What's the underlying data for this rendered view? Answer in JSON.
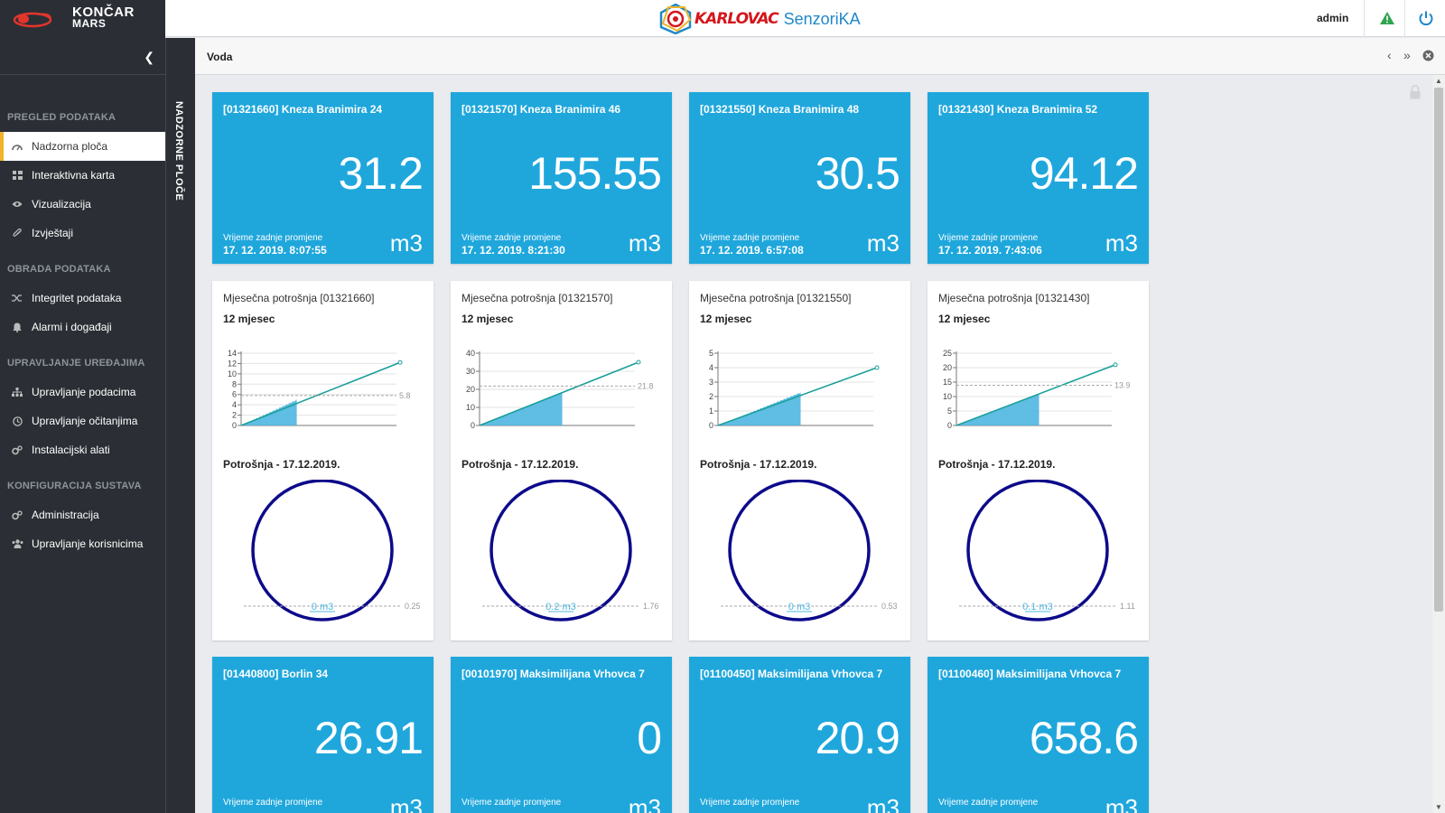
{
  "header": {
    "brand_line1": "KONČAR",
    "brand_line2": "MARS",
    "logo_karlovac": "KARLOVAC",
    "logo_senzorika": "SenzoriKA",
    "user": "admin"
  },
  "colors": {
    "sidebar": "#2b2f35",
    "tile": "#1fa7dc",
    "accent": "#f0b429",
    "gauge": "#0d0a8a",
    "line": "#1a9f9a"
  },
  "sidebar": {
    "sections": [
      {
        "title": "PREGLED PODATAKA",
        "items": [
          {
            "label": "Nadzorna ploča",
            "icon": "dashboard-icon"
          },
          {
            "label": "Interaktivna karta",
            "icon": "grid-icon"
          },
          {
            "label": "Vizualizacija",
            "icon": "eye-icon"
          },
          {
            "label": "Izvještaji",
            "icon": "paperclip-icon"
          }
        ]
      },
      {
        "title": "OBRADA PODATAKA",
        "items": [
          {
            "label": "Integritet podataka",
            "icon": "shuffle-icon"
          },
          {
            "label": "Alarmi i događaji",
            "icon": "bell-icon"
          }
        ]
      },
      {
        "title": "UPRAVLJANJE UREĐAJIMA",
        "items": [
          {
            "label": "Upravljanje podacima",
            "icon": "sitemap-icon"
          },
          {
            "label": "Upravljanje očitanjima",
            "icon": "clock-icon"
          },
          {
            "label": "Instalacijski alati",
            "icon": "gears-icon"
          }
        ]
      },
      {
        "title": "KONFIGURACIJA SUSTAVA",
        "items": [
          {
            "label": "Administracija",
            "icon": "gears-icon"
          },
          {
            "label": "Upravljanje korisnicima",
            "icon": "users-icon"
          }
        ]
      }
    ]
  },
  "vertical_tab": "NADZORNE PLOČE",
  "page": {
    "title": "Voda"
  },
  "tiles": [
    {
      "title": "[01321660] Kneza Branimira 24",
      "value": "31.2",
      "time_label": "Vrijeme zadnje promjene",
      "time": "17. 12. 2019. 8:07:55",
      "unit": "m3"
    },
    {
      "title": "[01321570] Kneza Branimira 46",
      "value": "155.55",
      "time_label": "Vrijeme zadnje promjene",
      "time": "17. 12. 2019. 8:21:30",
      "unit": "m3"
    },
    {
      "title": "[01321550] Kneza Branimira 48",
      "value": "30.5",
      "time_label": "Vrijeme zadnje promjene",
      "time": "17. 12. 2019. 6:57:08",
      "unit": "m3"
    },
    {
      "title": "[01321430] Kneza Branimira 52",
      "value": "94.12",
      "time_label": "Vrijeme zadnje promjene",
      "time": "17. 12. 2019. 7:43:06",
      "unit": "m3"
    },
    {
      "title": "[01440800] Borlin 34",
      "value": "26.91",
      "time_label": "Vrijeme zadnje promjene",
      "time": "",
      "unit": "m3"
    },
    {
      "title": "[00101970] Maksimilijana Vrhovca 7",
      "value": "0",
      "time_label": "Vrijeme zadnje promjene",
      "time": "",
      "unit": "m3"
    },
    {
      "title": "[01100450] Maksimilijana Vrhovca 7",
      "value": "20.9",
      "time_label": "Vrijeme zadnje promjene",
      "time": "",
      "unit": "m3"
    },
    {
      "title": "[01100460] Maksimilijana Vrhovca 7",
      "value": "658.6",
      "time_label": "Vrijeme zadnje promjene",
      "time": "",
      "unit": "m3"
    }
  ],
  "cards": [
    {
      "title": "Mjesečna potrošnja [01321660]",
      "subtitle": "12 mjesec",
      "consumption_title": "Potrošnja - 17.12.2019.",
      "gauge_value": "0 m3",
      "gauge_ref": "0.25"
    },
    {
      "title": "Mjesečna potrošnja [01321570]",
      "subtitle": "12 mjesec",
      "consumption_title": "Potrošnja - 17.12.2019.",
      "gauge_value": "0.2 m3",
      "gauge_ref": "1.76"
    },
    {
      "title": "Mjesečna potrošnja [01321550]",
      "subtitle": "12 mjesec",
      "consumption_title": "Potrošnja - 17.12.2019.",
      "gauge_value": "0 m3",
      "gauge_ref": "0.53"
    },
    {
      "title": "Mjesečna potrošnja [01321430]",
      "subtitle": "12 mjesec",
      "consumption_title": "Potrošnja - 17.12.2019.",
      "gauge_value": "0.1 m3",
      "gauge_ref": "1.11"
    }
  ],
  "chart_data": [
    {
      "type": "area",
      "yticks": [
        0,
        2,
        4,
        6,
        8,
        10,
        12,
        14
      ],
      "ylim": [
        0,
        14
      ],
      "x_fill": [
        0,
        0.35
      ],
      "actual": [
        0,
        5
      ],
      "projection_end": 12.2,
      "reference": 5.8,
      "reference_label": "5.8"
    },
    {
      "type": "area",
      "yticks": [
        0,
        10,
        20,
        30,
        40
      ],
      "ylim": [
        0,
        40
      ],
      "x_fill": [
        0,
        0.52
      ],
      "actual": [
        0,
        18.5
      ],
      "projection_end": 35,
      "reference": 21.8,
      "reference_label": "21.8"
    },
    {
      "type": "area",
      "yticks": [
        0,
        1,
        2,
        3,
        4,
        5
      ],
      "ylim": [
        0,
        5
      ],
      "x_fill": [
        0,
        0.52
      ],
      "actual": [
        0,
        2.3
      ],
      "projection_end": 4,
      "reference": 0,
      "reference_label": ""
    },
    {
      "type": "area",
      "yticks": [
        0,
        5,
        10,
        15,
        20,
        25
      ],
      "ylim": [
        0,
        25
      ],
      "x_fill": [
        0,
        0.52
      ],
      "actual": [
        0,
        11
      ],
      "projection_end": 21,
      "reference": 13.9,
      "reference_label": "13.9"
    }
  ]
}
